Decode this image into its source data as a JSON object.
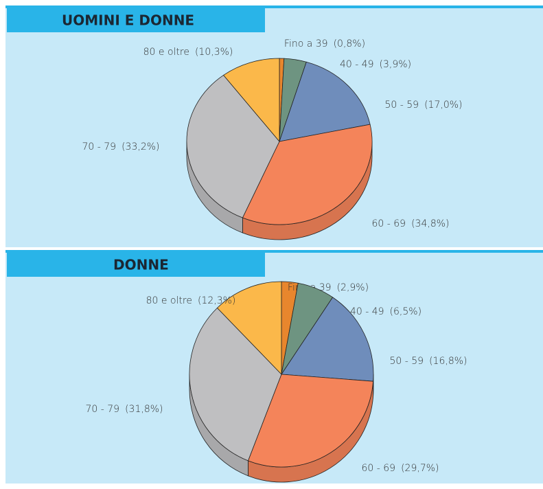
{
  "chart_data": [
    {
      "type": "pie",
      "title": "UOMINI E DONNE",
      "categories": [
        "Fino a 39",
        "40 - 49",
        "50 - 59",
        "60 - 69",
        "70 - 79",
        "80 e oltre"
      ],
      "values": [
        0.8,
        3.9,
        17.0,
        34.8,
        33.2,
        10.3
      ],
      "value_labels": [
        "(0,8%)",
        "(3,9%)",
        "(17,0%)",
        "(34,8%)",
        "(33,2%)",
        "(10,3%)"
      ],
      "colors": [
        "#e8862d",
        "#6e9481",
        "#6f8dbb",
        "#f4845a",
        "#bfbfc1",
        "#fbb84a"
      ]
    },
    {
      "type": "pie",
      "title": "DONNE",
      "categories": [
        "Fino a 39",
        "40 - 49",
        "50 - 59",
        "60 - 69",
        "70 - 79",
        "80 e oltre"
      ],
      "values": [
        2.9,
        6.5,
        16.8,
        29.7,
        31.8,
        12.3
      ],
      "value_labels": [
        "(2,9%)",
        "(6,5%)",
        "(16,8%)",
        "(29,7%)",
        "(31,8%)",
        "(12,3%)"
      ],
      "colors": [
        "#e8862d",
        "#6e9481",
        "#6f8dbb",
        "#f4845a",
        "#bfbfc1",
        "#fbb84a"
      ]
    }
  ]
}
